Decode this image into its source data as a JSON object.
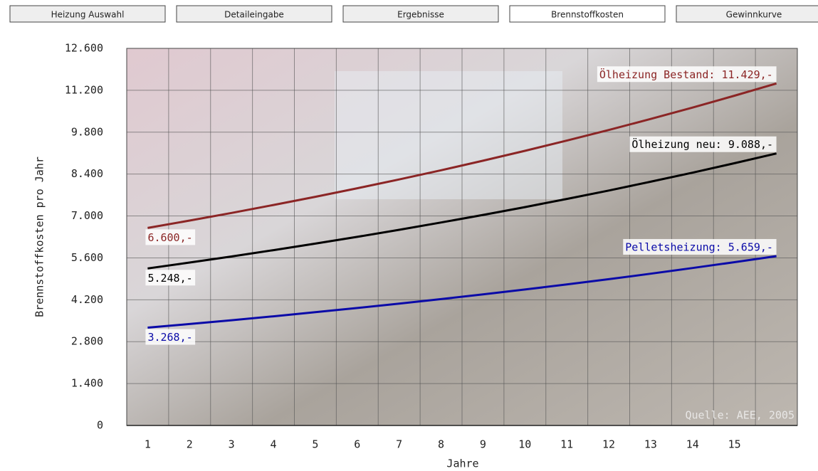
{
  "tabs": [
    "Heizung Auswahl",
    "Detaileingabe",
    "Ergebnisse",
    "Brennstoffkosten",
    "Gewinnkurve"
  ],
  "active_tab": 3,
  "chart_data": {
    "type": "line",
    "y_label": "Brennstoffkosten pro Jahr",
    "x_label": "Jahre",
    "source": "Quelle: AEE, 2005",
    "x": [
      1,
      2,
      3,
      4,
      5,
      6,
      7,
      8,
      9,
      10,
      11,
      12,
      13,
      14,
      15,
      16
    ],
    "xlim": [
      0.5,
      16.5
    ],
    "xticks": [
      1,
      2,
      3,
      4,
      5,
      6,
      7,
      8,
      9,
      10,
      11,
      12,
      13,
      14,
      15
    ],
    "ylim": [
      0,
      12600
    ],
    "yticks": [
      0,
      {
        "value": 1400,
        "label": "1.400"
      },
      {
        "value": 2800,
        "label": "2.800"
      },
      {
        "value": 4200,
        "label": "4.200"
      },
      {
        "value": 5600,
        "label": "5.600"
      },
      {
        "value": 7000,
        "label": "7.000"
      },
      {
        "value": 8400,
        "label": "8.400"
      },
      {
        "value": 9800,
        "label": "9.800"
      },
      {
        "value": 11200,
        "label": "11.200"
      },
      {
        "value": 12600,
        "label": "12.600"
      }
    ],
    "grid": true,
    "series": [
      {
        "color": "#8b2525",
        "values": [
          6600,
          6846,
          7102,
          7367,
          7641,
          7926,
          8222,
          8528,
          8846,
          9176,
          9518,
          9873,
          10241,
          10623,
          11019,
          11429
        ],
        "value_labels": [
          "6.600,-",
          null,
          null,
          null,
          null,
          null,
          null,
          null,
          null,
          null,
          null,
          null,
          null,
          null,
          null,
          "Ölheizung Bestand: 11.429,-"
        ]
      },
      {
        "color": "#000000",
        "values": [
          5248,
          5444,
          5647,
          5858,
          6076,
          6303,
          6538,
          6782,
          7034,
          7297,
          7569,
          7851,
          8144,
          8447,
          8762,
          9088
        ],
        "value_labels": [
          "5.248,-",
          null,
          null,
          null,
          null,
          null,
          null,
          null,
          null,
          null,
          null,
          null,
          null,
          null,
          null,
          "Ölheizung neu: 9.088,-"
        ]
      },
      {
        "color": "#0a0aa8",
        "values": [
          3268,
          3390,
          3517,
          3648,
          3784,
          3925,
          4071,
          4223,
          4380,
          4544,
          4713,
          4889,
          5071,
          5260,
          5456,
          5659
        ],
        "value_labels": [
          "3.268,-",
          null,
          null,
          null,
          null,
          null,
          null,
          null,
          null,
          null,
          null,
          null,
          null,
          null,
          null,
          "Pelletsheizung: 5.659,-"
        ]
      }
    ]
  }
}
